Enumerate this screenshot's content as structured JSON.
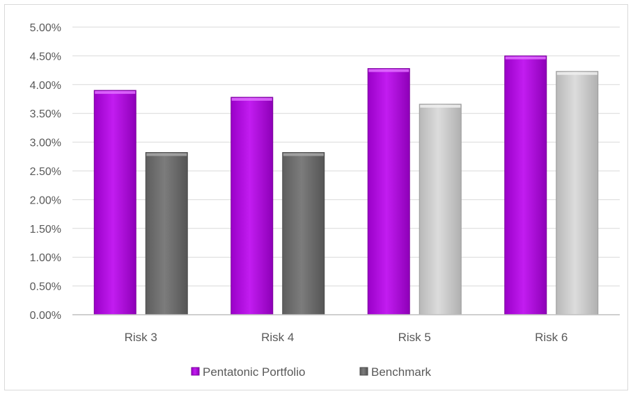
{
  "chart_data": {
    "type": "bar",
    "categories": [
      "Risk 3",
      "Risk 4",
      "Risk 5",
      "Risk 6"
    ],
    "series": [
      {
        "name": "Pentatonic Portfolio",
        "values": [
          3.9,
          3.78,
          4.28,
          4.5
        ]
      },
      {
        "name": "Benchmark",
        "values": [
          2.82,
          2.82,
          3.66,
          4.23
        ]
      }
    ],
    "ylim": [
      0,
      5
    ],
    "yticks": [
      0,
      0.5,
      1.0,
      1.5,
      2.0,
      2.5,
      3.0,
      3.5,
      4.0,
      4.5,
      5.0
    ],
    "ytick_labels": [
      "0.00%",
      "0.50%",
      "1.00%",
      "1.50%",
      "2.00%",
      "2.50%",
      "3.00%",
      "3.50%",
      "4.00%",
      "4.50%",
      "5.00%"
    ],
    "grid": true,
    "legend_position": "bottom",
    "colors": {
      "portfolio": "#b000e0",
      "benchmark_dark": "#707070",
      "benchmark_light": "#c8c8c8",
      "grid": "#d9d9d9",
      "axis": "#bfbfbf"
    },
    "benchmark_fill_by_category": [
      "dark",
      "dark",
      "light",
      "light"
    ],
    "legend": {
      "items": [
        {
          "label": "Pentatonic Portfolio",
          "color": "#b000e0"
        },
        {
          "label": "Benchmark",
          "color": "#707070"
        }
      ]
    }
  }
}
